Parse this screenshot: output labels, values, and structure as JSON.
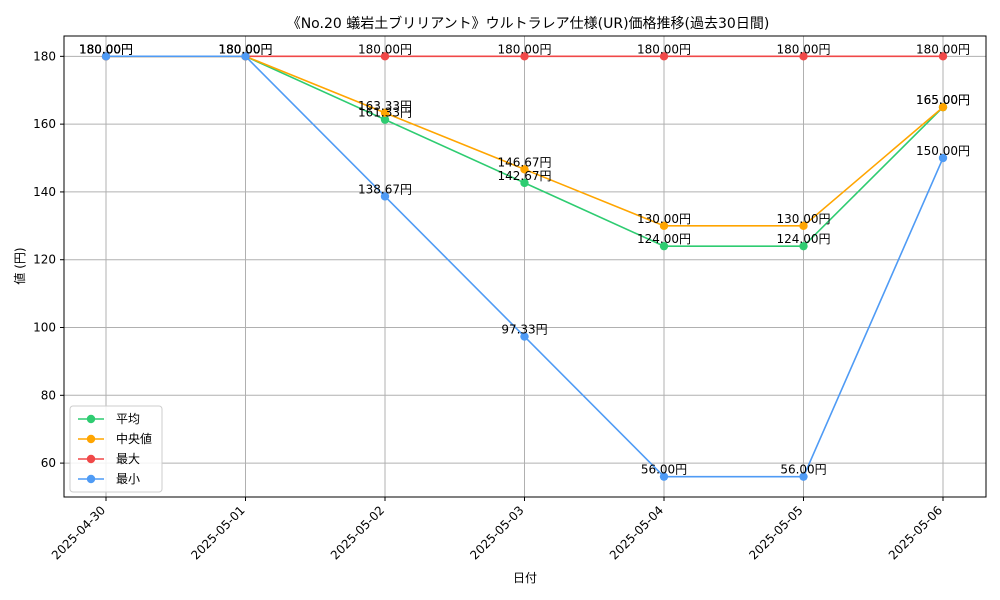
{
  "chart_data": {
    "type": "line",
    "title": "《No.20 蟻岩土ブリリアント》ウルトラレア仕様(UR)価格推移(過去30日間)",
    "xlabel": "日付",
    "ylabel": "値 (円)",
    "ylim": [
      50,
      186
    ],
    "yticks": [
      60,
      80,
      100,
      120,
      140,
      160,
      180
    ],
    "ytick_labels": [
      "60",
      "80",
      "100",
      "120",
      "140",
      "160",
      "180"
    ],
    "grid": true,
    "legend_position": "lower-left",
    "categories": [
      "2025-04-30",
      "2025-05-01",
      "2025-05-02",
      "2025-05-03",
      "2025-05-04",
      "2025-05-05",
      "2025-05-06"
    ],
    "series": [
      {
        "name": "平均",
        "color": "#2ecc71",
        "values": [
          180,
          180,
          161.33,
          142.67,
          124,
          124,
          165
        ],
        "labels": [
          "180.00円",
          "180.00円",
          "161.33円",
          "142.67円",
          "124.00円",
          "124.00円",
          "165.00円"
        ]
      },
      {
        "name": "中央値",
        "color": "#ffa500",
        "values": [
          180,
          180,
          163.33,
          146.67,
          130,
          130,
          165
        ],
        "labels": [
          "180.00円",
          "180.00円",
          "163.33円",
          "146.67円",
          "130.00円",
          "130.00円",
          "165.00円"
        ]
      },
      {
        "name": "最大",
        "color": "#f04848",
        "values": [
          180,
          180,
          180,
          180,
          180,
          180,
          180
        ],
        "labels": [
          "180.00円",
          "180.00円",
          "180.00円",
          "180.00円",
          "180.00円",
          "180.00円",
          "180.00円"
        ]
      },
      {
        "name": "最小",
        "color": "#4f9bf5",
        "values": [
          180,
          180,
          138.67,
          97.33,
          56,
          56,
          150
        ],
        "labels": [
          "180.00円",
          "180.00円",
          "138.67円",
          "97.33円",
          "56.00円",
          "56.00円",
          "150.00円"
        ]
      }
    ]
  }
}
